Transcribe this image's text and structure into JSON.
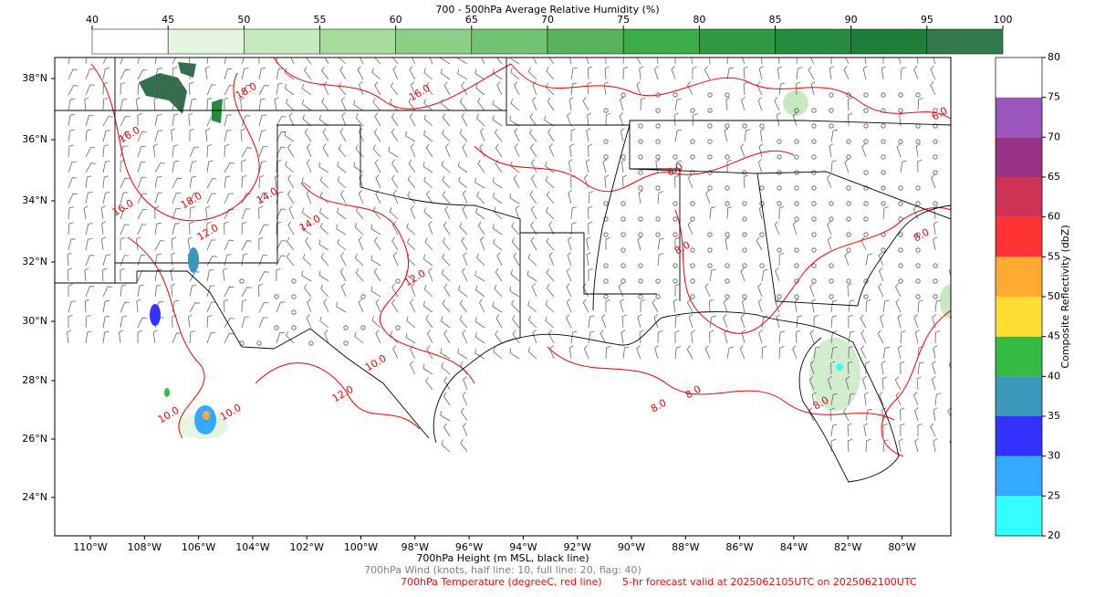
{
  "rh_colorbar": {
    "title": "700 - 500hPa Average Relative Humidity (%)",
    "ticks": [
      40,
      45,
      50,
      55,
      60,
      65,
      70,
      75,
      80,
      85,
      90,
      95,
      100
    ],
    "colors": [
      "#ffffff",
      "#e5f5e0",
      "#c7e9c0",
      "#a8dc9c",
      "#8ace88",
      "#71c271",
      "#56b35c",
      "#3bab47",
      "#2f9a43",
      "#268a3f",
      "#1f7d3a",
      "#327a4c",
      "#336f4d"
    ]
  },
  "reflectivity_colorbar": {
    "label": "Composite Reflectivity (dbZ)",
    "ticks": [
      20,
      25,
      30,
      35,
      40,
      45,
      50,
      55,
      60,
      65,
      70,
      75,
      80
    ],
    "colors": [
      "#33ffff",
      "#33aaff",
      "#3333ff",
      "#3a99bb",
      "#33bb44",
      "#ffdd33",
      "#ffaa33",
      "#ff3333",
      "#cc3355",
      "#993388",
      "#9955bb",
      "#ffffff"
    ]
  },
  "map": {
    "lat_labels": [
      "38°N",
      "36°N",
      "34°N",
      "32°N",
      "30°N",
      "28°N",
      "26°N",
      "24°N"
    ],
    "lon_labels": [
      "110°W",
      "108°W",
      "106°W",
      "104°W",
      "102°W",
      "100°W",
      "98°W",
      "96°W",
      "94°W",
      "92°W",
      "90°W",
      "88°W",
      "86°W",
      "84°W",
      "82°W",
      "80°W"
    ],
    "temperature_contour_labels": [
      "16.0",
      "18.0",
      "16.0",
      "18.0",
      "14.0",
      "16.0",
      "14.0",
      "12.0",
      "12.0",
      "10.0",
      "10.0",
      "12.0",
      "10.0",
      "8.0",
      "8.0",
      "8.0",
      "8.0",
      "8.0",
      "8.0",
      "6.0"
    ]
  },
  "footer": {
    "height": "700hPa Height (m MSL, black line)",
    "wind": "700hPa Wind (knots, half line: 10, full line: 20, flag: 40)",
    "temperature": "700hPa Temperature (degreeC, red line)",
    "forecast": "5-hr forecast valid at 2025062105UTC on 2025062100UTC"
  }
}
